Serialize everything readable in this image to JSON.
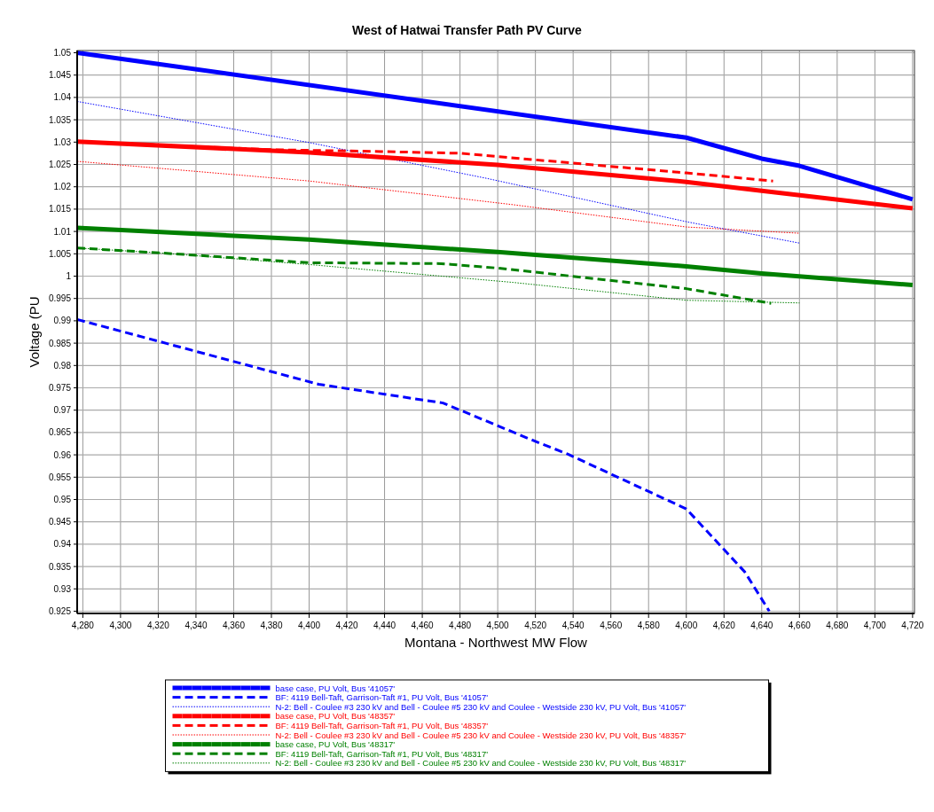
{
  "chart_data": {
    "type": "line",
    "title": "West of Hatwai Transfer Path PV Curve",
    "xlabel": "Montana - Northwest MW Flow",
    "ylabel": "Voltage (PU",
    "xlim": [
      4277,
      4721
    ],
    "ylim": [
      0.9245,
      1.0505
    ],
    "xticks": [
      {
        "value": 4280,
        "label": "4,280"
      },
      {
        "value": 4300,
        "label": "4,300"
      },
      {
        "value": 4320,
        "label": "4,320"
      },
      {
        "value": 4340,
        "label": "4,340"
      },
      {
        "value": 4360,
        "label": "4,360"
      },
      {
        "value": 4380,
        "label": "4,380"
      },
      {
        "value": 4400,
        "label": "4,400"
      },
      {
        "value": 4420,
        "label": "4,420"
      },
      {
        "value": 4440,
        "label": "4,440"
      },
      {
        "value": 4460,
        "label": "4,460"
      },
      {
        "value": 4480,
        "label": "4,480"
      },
      {
        "value": 4500,
        "label": "4,500"
      },
      {
        "value": 4520,
        "label": "4,520"
      },
      {
        "value": 4540,
        "label": "4,540"
      },
      {
        "value": 4560,
        "label": "4,560"
      },
      {
        "value": 4580,
        "label": "4,580"
      },
      {
        "value": 4600,
        "label": "4,600"
      },
      {
        "value": 4620,
        "label": "4,620"
      },
      {
        "value": 4640,
        "label": "4,640"
      },
      {
        "value": 4660,
        "label": "4,660"
      },
      {
        "value": 4680,
        "label": "4,680"
      },
      {
        "value": 4700,
        "label": "4,700"
      },
      {
        "value": 4720,
        "label": "4,720"
      }
    ],
    "yticks": [
      0.925,
      0.93,
      0.935,
      0.94,
      0.945,
      0.95,
      0.955,
      0.96,
      0.965,
      0.97,
      0.975,
      0.98,
      0.985,
      0.99,
      0.995,
      1,
      1.005,
      1.01,
      1.015,
      1.02,
      1.025,
      1.03,
      1.035,
      1.04,
      1.045,
      1.05
    ],
    "grid": true,
    "legend": "bottom",
    "series": [
      {
        "name": "base case, PU Volt, Bus '41057'",
        "color": "#0000ff",
        "line_style": "solid",
        "x": [
          4277,
          4600,
          4640,
          4660,
          4720
        ],
        "values": [
          1.05,
          1.031,
          1.0263,
          1.0247,
          1.0172
        ]
      },
      {
        "name": "BF: 4119 Bell-Taft, Garrison-Taft #1, PU Volt, Bus '41057'",
        "color": "#0000ff",
        "line_style": "dashed",
        "x": [
          4277,
          4405,
          4471,
          4520,
          4537,
          4560,
          4600,
          4631,
          4644
        ],
        "values": [
          0.9903,
          0.9758,
          0.9716,
          0.963,
          0.9602,
          0.9557,
          0.9479,
          0.9338,
          0.925
        ]
      },
      {
        "name": "N-2: Bell - Coulee #3 230 kV and Bell - Coulee #5 230 kV and Coulee - Westside 230 kV, PU Volt, Bus '41057'",
        "color": "#0000ff",
        "line_style": "dotted",
        "x": [
          4277,
          4400,
          4494,
          4601,
          4660
        ],
        "values": [
          1.0391,
          1.0299,
          1.0219,
          1.0121,
          1.0074
        ]
      },
      {
        "name": "base case, PU Volt, Bus '48357'",
        "color": "#ff0000",
        "line_style": "solid",
        "x": [
          4277,
          4400,
          4500,
          4600,
          4640,
          4720
        ],
        "values": [
          1.0301,
          1.0277,
          1.0249,
          1.0211,
          1.0191,
          1.0152
        ]
      },
      {
        "name": "BF: 4119 Bell-Taft, Garrison-Taft #1, PU Volt, Bus '48357'",
        "color": "#ff0000",
        "line_style": "dashed",
        "x": [
          4277,
          4380,
          4438,
          4480,
          4600,
          4646
        ],
        "values": [
          1.0301,
          1.0283,
          1.0279,
          1.0275,
          1.0231,
          1.0213
        ]
      },
      {
        "name": "N-2: Bell - Coulee #3 230 kV and Bell - Coulee #5 230 kV and Coulee - Westside 230 kV, PU Volt, Bus '48357'",
        "color": "#ff0000",
        "line_style": "dotted",
        "x": [
          4277,
          4400,
          4508,
          4600,
          4660
        ],
        "values": [
          1.0257,
          1.0213,
          1.016,
          1.011,
          1.0096
        ]
      },
      {
        "name": "base case, PU Volt, Bus '48317'",
        "color": "#008000",
        "line_style": "solid",
        "x": [
          4277,
          4400,
          4500,
          4600,
          4640,
          4720
        ],
        "values": [
          1.0108,
          1.0082,
          1.0054,
          1.0022,
          1.0006,
          0.998
        ]
      },
      {
        "name": "BF: 4119 Bell-Taft, Garrison-Taft #1, PU Volt, Bus '48317'",
        "color": "#008000",
        "line_style": "dashed",
        "x": [
          4277,
          4321,
          4400,
          4470,
          4500,
          4600,
          4645
        ],
        "values": [
          1.0063,
          1.0052,
          1.003,
          1.0028,
          1.0018,
          0.9972,
          0.9939
        ]
      },
      {
        "name": "N-2: Bell - Coulee #3 230 kV and Bell - Coulee #5 230 kV and Coulee - Westside 230 kV, PU Volt, Bus '48317'",
        "color": "#008000",
        "line_style": "dotted",
        "x": [
          4277,
          4321,
          4400,
          4508,
          4600,
          4660
        ],
        "values": [
          1.0063,
          1.0052,
          1.0026,
          0.9986,
          0.9946,
          0.994
        ]
      }
    ]
  }
}
